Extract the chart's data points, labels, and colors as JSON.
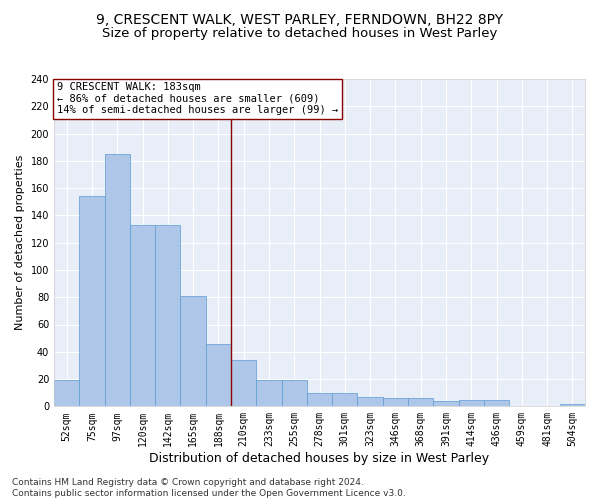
{
  "title_line1": "9, CRESCENT WALK, WEST PARLEY, FERNDOWN, BH22 8PY",
  "title_line2": "Size of property relative to detached houses in West Parley",
  "xlabel": "Distribution of detached houses by size in West Parley",
  "ylabel": "Number of detached properties",
  "categories": [
    "52sqm",
    "75sqm",
    "97sqm",
    "120sqm",
    "142sqm",
    "165sqm",
    "188sqm",
    "210sqm",
    "233sqm",
    "255sqm",
    "278sqm",
    "301sqm",
    "323sqm",
    "346sqm",
    "368sqm",
    "391sqm",
    "414sqm",
    "436sqm",
    "459sqm",
    "481sqm",
    "504sqm"
  ],
  "values": [
    19,
    154,
    185,
    133,
    133,
    81,
    46,
    34,
    19,
    19,
    10,
    10,
    7,
    6,
    6,
    4,
    5,
    5,
    0,
    0,
    2
  ],
  "bar_color": "#aec6e8",
  "bar_edge_color": "#5b9bd5",
  "vline_x": 6.5,
  "vline_color": "#8b0000",
  "annotation_text": "9 CRESCENT WALK: 183sqm\n← 86% of detached houses are smaller (609)\n14% of semi-detached houses are larger (99) →",
  "annotation_box_color": "white",
  "annotation_box_edge": "#8b0000",
  "ylim": [
    0,
    240
  ],
  "yticks": [
    0,
    20,
    40,
    60,
    80,
    100,
    120,
    140,
    160,
    180,
    200,
    220,
    240
  ],
  "background_color": "#e8eef8",
  "grid_color": "white",
  "footer_text": "Contains HM Land Registry data © Crown copyright and database right 2024.\nContains public sector information licensed under the Open Government Licence v3.0.",
  "title_fontsize": 10,
  "subtitle_fontsize": 9.5,
  "xlabel_fontsize": 9,
  "ylabel_fontsize": 8,
  "tick_fontsize": 7,
  "annotation_fontsize": 7.5,
  "footer_fontsize": 6.5
}
